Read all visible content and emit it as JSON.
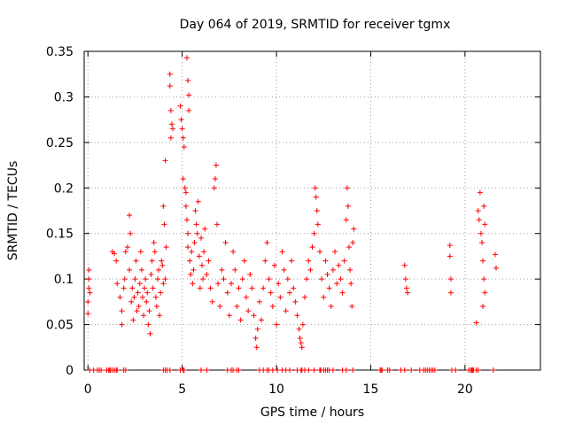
{
  "chart_data": {
    "type": "scatter",
    "title": "Day 064 of 2019, SRMTID for receiver tgmx",
    "xlabel": "GPS time / hours",
    "ylabel": "SRMTID / TECUs",
    "xlim": [
      -0.2,
      24
    ],
    "ylim": [
      0,
      0.35
    ],
    "xticks": [
      0,
      5,
      10,
      15,
      20
    ],
    "yticks": [
      0,
      0.05,
      0.1,
      0.15,
      0.2,
      0.25,
      0.3,
      0.35
    ],
    "xtick_labels": [
      "0",
      "5",
      "10",
      "15",
      "20"
    ],
    "ytick_labels": [
      "0",
      "0.05",
      "0.1",
      "0.15",
      "0.2",
      "0.25",
      "0.3",
      "0.35"
    ],
    "grid": true,
    "marker": "plus",
    "color": "#ff0000",
    "series": [
      {
        "name": "SRMTID",
        "points": [
          [
            0.0,
            0.062
          ],
          [
            0.0,
            0.075
          ],
          [
            0.05,
            0.09
          ],
          [
            0.05,
            0.1
          ],
          [
            0.05,
            0.11
          ],
          [
            0.1,
            0.085
          ],
          [
            1.3,
            0.13
          ],
          [
            1.4,
            0.128
          ],
          [
            1.5,
            0.12
          ],
          [
            1.55,
            0.095
          ],
          [
            1.7,
            0.08
          ],
          [
            1.8,
            0.065
          ],
          [
            1.8,
            0.05
          ],
          [
            1.9,
            0.09
          ],
          [
            1.95,
            0.1
          ],
          [
            2.0,
            0.13
          ],
          [
            2.1,
            0.135
          ],
          [
            2.2,
            0.11
          ],
          [
            2.2,
            0.17
          ],
          [
            2.25,
            0.15
          ],
          [
            2.3,
            0.075
          ],
          [
            2.35,
            0.09
          ],
          [
            2.4,
            0.055
          ],
          [
            2.45,
            0.08
          ],
          [
            2.5,
            0.1
          ],
          [
            2.55,
            0.12
          ],
          [
            2.6,
            0.065
          ],
          [
            2.65,
            0.085
          ],
          [
            2.7,
            0.07
          ],
          [
            2.75,
            0.095
          ],
          [
            2.8,
            0.13
          ],
          [
            2.85,
            0.11
          ],
          [
            2.9,
            0.08
          ],
          [
            2.95,
            0.06
          ],
          [
            3.0,
            0.09
          ],
          [
            3.05,
            0.1
          ],
          [
            3.1,
            0.075
          ],
          [
            3.15,
            0.085
          ],
          [
            3.2,
            0.05
          ],
          [
            3.25,
            0.065
          ],
          [
            3.3,
            0.04
          ],
          [
            3.35,
            0.105
          ],
          [
            3.4,
            0.12
          ],
          [
            3.45,
            0.09
          ],
          [
            3.5,
            0.14
          ],
          [
            3.55,
            0.13
          ],
          [
            3.6,
            0.08
          ],
          [
            3.65,
            0.07
          ],
          [
            3.7,
            0.1
          ],
          [
            3.75,
            0.11
          ],
          [
            3.8,
            0.06
          ],
          [
            3.85,
            0.085
          ],
          [
            3.9,
            0.12
          ],
          [
            3.95,
            0.115
          ],
          [
            4.0,
            0.18
          ],
          [
            4.05,
            0.16
          ],
          [
            4.1,
            0.23
          ],
          [
            4.15,
            0.135
          ],
          [
            4.1,
            0.1
          ],
          [
            4.0,
            0.095
          ],
          [
            4.35,
            0.325
          ],
          [
            4.35,
            0.312
          ],
          [
            4.4,
            0.285
          ],
          [
            4.45,
            0.27
          ],
          [
            4.4,
            0.255
          ],
          [
            4.5,
            0.265
          ],
          [
            4.9,
            0.29
          ],
          [
            4.95,
            0.275
          ],
          [
            5.0,
            0.265
          ],
          [
            5.05,
            0.255
          ],
          [
            5.1,
            0.245
          ],
          [
            5.05,
            0.21
          ],
          [
            5.15,
            0.2
          ],
          [
            5.2,
            0.195
          ],
          [
            5.2,
            0.18
          ],
          [
            5.25,
            0.165
          ],
          [
            5.3,
            0.15
          ],
          [
            5.3,
            0.135
          ],
          [
            5.25,
            0.343
          ],
          [
            5.3,
            0.318
          ],
          [
            5.35,
            0.302
          ],
          [
            5.35,
            0.285
          ],
          [
            5.4,
            0.12
          ],
          [
            5.45,
            0.105
          ],
          [
            5.5,
            0.13
          ],
          [
            5.55,
            0.095
          ],
          [
            5.6,
            0.11
          ],
          [
            5.65,
            0.14
          ],
          [
            5.7,
            0.175
          ],
          [
            5.75,
            0.16
          ],
          [
            5.8,
            0.15
          ],
          [
            5.85,
            0.185
          ],
          [
            5.9,
            0.125
          ],
          [
            5.95,
            0.09
          ],
          [
            6.0,
            0.145
          ],
          [
            6.05,
            0.115
          ],
          [
            6.1,
            0.1
          ],
          [
            6.15,
            0.13
          ],
          [
            6.2,
            0.155
          ],
          [
            6.3,
            0.105
          ],
          [
            6.4,
            0.12
          ],
          [
            6.5,
            0.09
          ],
          [
            6.6,
            0.075
          ],
          [
            6.7,
            0.2
          ],
          [
            6.75,
            0.21
          ],
          [
            6.8,
            0.225
          ],
          [
            6.85,
            0.16
          ],
          [
            6.9,
            0.095
          ],
          [
            7.0,
            0.07
          ],
          [
            7.1,
            0.11
          ],
          [
            7.2,
            0.1
          ],
          [
            7.3,
            0.14
          ],
          [
            7.4,
            0.085
          ],
          [
            7.5,
            0.06
          ],
          [
            7.6,
            0.095
          ],
          [
            7.7,
            0.13
          ],
          [
            7.8,
            0.11
          ],
          [
            7.9,
            0.07
          ],
          [
            8.0,
            0.09
          ],
          [
            8.1,
            0.055
          ],
          [
            8.2,
            0.1
          ],
          [
            8.3,
            0.12
          ],
          [
            8.4,
            0.08
          ],
          [
            8.5,
            0.065
          ],
          [
            8.6,
            0.105
          ],
          [
            8.7,
            0.09
          ],
          [
            8.8,
            0.06
          ],
          [
            8.9,
            0.035
          ],
          [
            8.95,
            0.025
          ],
          [
            9.0,
            0.045
          ],
          [
            9.1,
            0.075
          ],
          [
            9.2,
            0.055
          ],
          [
            9.3,
            0.09
          ],
          [
            9.4,
            0.12
          ],
          [
            9.5,
            0.14
          ],
          [
            9.6,
            0.1
          ],
          [
            9.7,
            0.085
          ],
          [
            9.8,
            0.07
          ],
          [
            9.9,
            0.115
          ],
          [
            10.0,
            0.05
          ],
          [
            10.1,
            0.095
          ],
          [
            10.2,
            0.08
          ],
          [
            10.3,
            0.13
          ],
          [
            10.4,
            0.11
          ],
          [
            10.5,
            0.065
          ],
          [
            10.6,
            0.1
          ],
          [
            10.7,
            0.085
          ],
          [
            10.8,
            0.12
          ],
          [
            10.9,
            0.09
          ],
          [
            11.0,
            0.075
          ],
          [
            11.1,
            0.06
          ],
          [
            11.2,
            0.045
          ],
          [
            11.25,
            0.035
          ],
          [
            11.3,
            0.03
          ],
          [
            11.35,
            0.025
          ],
          [
            11.4,
            0.05
          ],
          [
            11.5,
            0.08
          ],
          [
            11.6,
            0.1
          ],
          [
            11.7,
            0.12
          ],
          [
            11.8,
            0.11
          ],
          [
            11.9,
            0.135
          ],
          [
            12.0,
            0.15
          ],
          [
            12.05,
            0.2
          ],
          [
            12.1,
            0.19
          ],
          [
            12.15,
            0.175
          ],
          [
            12.2,
            0.16
          ],
          [
            12.3,
            0.13
          ],
          [
            12.4,
            0.1
          ],
          [
            12.5,
            0.08
          ],
          [
            12.6,
            0.12
          ],
          [
            12.7,
            0.105
          ],
          [
            12.8,
            0.09
          ],
          [
            12.9,
            0.07
          ],
          [
            13.0,
            0.11
          ],
          [
            13.1,
            0.13
          ],
          [
            13.2,
            0.095
          ],
          [
            13.3,
            0.115
          ],
          [
            13.4,
            0.1
          ],
          [
            13.5,
            0.085
          ],
          [
            13.6,
            0.12
          ],
          [
            13.7,
            0.165
          ],
          [
            13.75,
            0.2
          ],
          [
            13.8,
            0.18
          ],
          [
            13.85,
            0.135
          ],
          [
            13.9,
            0.11
          ],
          [
            13.95,
            0.095
          ],
          [
            14.0,
            0.07
          ],
          [
            14.05,
            0.14
          ],
          [
            14.1,
            0.155
          ],
          [
            16.8,
            0.115
          ],
          [
            16.85,
            0.1
          ],
          [
            16.9,
            0.09
          ],
          [
            16.95,
            0.085
          ],
          [
            19.2,
            0.137
          ],
          [
            19.2,
            0.125
          ],
          [
            19.25,
            0.1
          ],
          [
            19.25,
            0.085
          ],
          [
            20.6,
            0.052
          ],
          [
            20.7,
            0.175
          ],
          [
            20.75,
            0.165
          ],
          [
            20.8,
            0.195
          ],
          [
            20.85,
            0.15
          ],
          [
            20.9,
            0.14
          ],
          [
            20.95,
            0.12
          ],
          [
            21.0,
            0.18
          ],
          [
            21.05,
            0.16
          ],
          [
            21.0,
            0.1
          ],
          [
            20.95,
            0.07
          ],
          [
            21.05,
            0.085
          ],
          [
            21.6,
            0.127
          ],
          [
            21.65,
            0.112
          ]
        ]
      }
    ],
    "zero_markers_x": [
      0.1,
      0.3,
      0.5,
      0.6,
      0.7,
      1.0,
      1.1,
      1.15,
      1.2,
      1.3,
      1.4,
      1.5,
      1.55,
      1.9,
      2.0,
      4.0,
      4.1,
      4.2,
      4.35,
      4.9,
      5.05,
      5.1,
      6.0,
      6.3,
      7.4,
      7.6,
      7.7,
      7.9,
      8.0,
      9.1,
      9.3,
      9.5,
      9.6,
      9.8,
      10.05,
      10.3,
      10.5,
      10.7,
      11.1,
      11.3,
      11.35,
      11.5,
      11.7,
      12.0,
      12.3,
      12.35,
      12.5,
      12.6,
      12.7,
      12.8,
      13.0,
      13.5,
      13.7,
      14.05,
      15.5,
      15.55,
      15.6,
      15.9,
      16.0,
      16.6,
      16.8,
      17.15,
      17.6,
      17.8,
      17.9,
      18.0,
      18.1,
      18.2,
      18.3,
      18.4,
      19.3,
      19.5,
      20.2,
      20.3,
      20.35,
      20.4,
      20.45,
      20.6,
      20.7,
      21.5
    ]
  }
}
